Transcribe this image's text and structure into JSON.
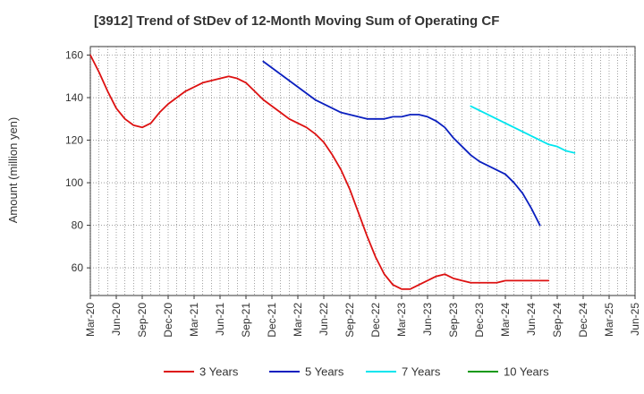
{
  "chart_data": {
    "type": "line",
    "title": "[3912]  Trend of StDev of 12-Month Moving Sum of Operating CF",
    "xlabel": "",
    "ylabel": "Amount (million yen)",
    "ylim": [
      47,
      164
    ],
    "yticks": [
      60,
      80,
      100,
      120,
      140,
      160
    ],
    "xticks": [
      "Mar-20",
      "Jun-20",
      "Sep-20",
      "Dec-20",
      "Mar-21",
      "Jun-21",
      "Sep-21",
      "Dec-21",
      "Mar-22",
      "Jun-22",
      "Sep-22",
      "Dec-22",
      "Mar-23",
      "Jun-23",
      "Sep-23",
      "Dec-23",
      "Mar-24",
      "Jun-24",
      "Sep-24",
      "Dec-24",
      "Mar-25",
      "Jun-25"
    ],
    "grid": true,
    "legend_position": "bottom",
    "series": [
      {
        "name": "3 Years",
        "color": "#dd1111",
        "start": "Mar-20",
        "values": [
          160,
          152,
          143,
          135,
          130,
          127,
          126,
          128,
          133,
          137,
          140,
          143,
          145,
          147,
          148,
          149,
          150,
          149,
          147,
          143,
          139,
          136,
          133,
          130,
          128,
          126,
          123,
          119,
          113,
          106,
          97,
          86,
          75,
          65,
          57,
          52,
          50,
          50,
          52,
          54,
          56,
          57,
          55,
          54,
          53,
          53,
          53,
          53,
          54,
          54,
          54,
          54,
          54,
          54
        ]
      },
      {
        "name": "5 Years",
        "color": "#0a1fbf",
        "start": "Nov-21",
        "values": [
          157,
          154,
          151,
          148,
          145,
          142,
          139,
          137,
          135,
          133,
          132,
          131,
          130,
          130,
          130,
          131,
          131,
          132,
          132,
          131,
          129,
          126,
          121,
          117,
          113,
          110,
          108,
          106,
          104,
          100,
          95,
          88,
          80
        ]
      },
      {
        "name": "7 Years",
        "color": "#00e5ee",
        "start": "Nov-23",
        "values": [
          136,
          134,
          132,
          130,
          128,
          126,
          124,
          122,
          120,
          118,
          117,
          115,
          114
        ]
      },
      {
        "name": "10 Years",
        "color": "#119911",
        "start": "",
        "values": []
      }
    ]
  }
}
